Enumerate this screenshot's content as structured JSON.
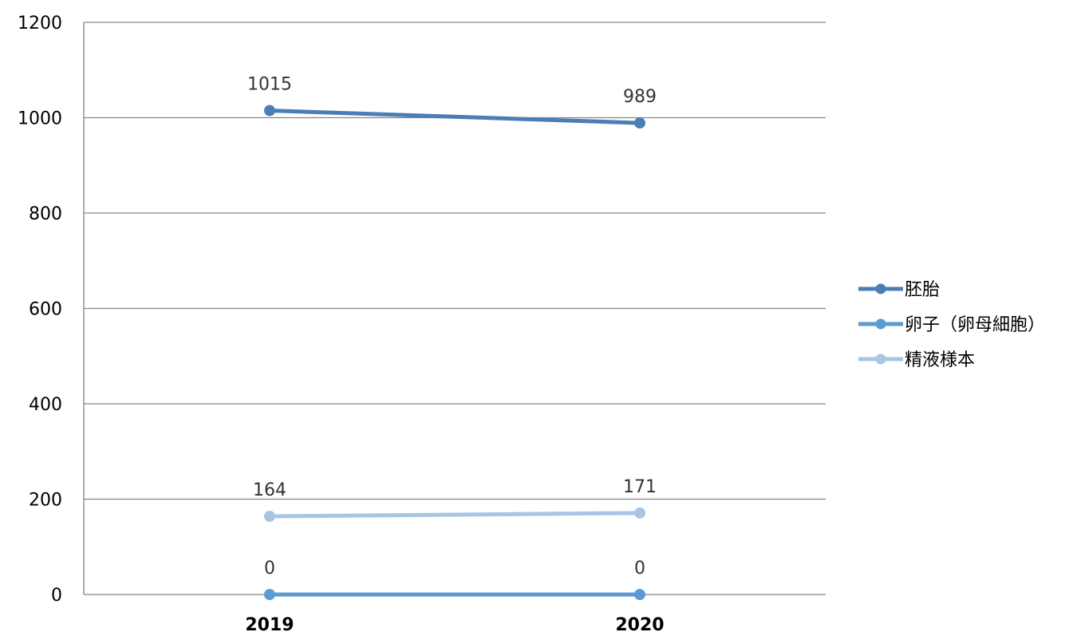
{
  "chart_data": {
    "type": "line",
    "categories": [
      "2019",
      "2020"
    ],
    "series": [
      {
        "name": "胚胎",
        "values": [
          1015,
          989
        ],
        "color": "#4A7EB5"
      },
      {
        "name": "卵子（卵母細胞）",
        "values": [
          0,
          0
        ],
        "color": "#5B9BD5"
      },
      {
        "name": "精液様本",
        "values": [
          164,
          171
        ],
        "color": "#A9C5E6"
      }
    ],
    "ylim": [
      0,
      1200
    ],
    "yticks": [
      "0",
      "200",
      "400",
      "600",
      "800",
      "1000",
      "1200"
    ],
    "xlabel": "",
    "ylabel": "",
    "grid": true,
    "legend": "right"
  }
}
